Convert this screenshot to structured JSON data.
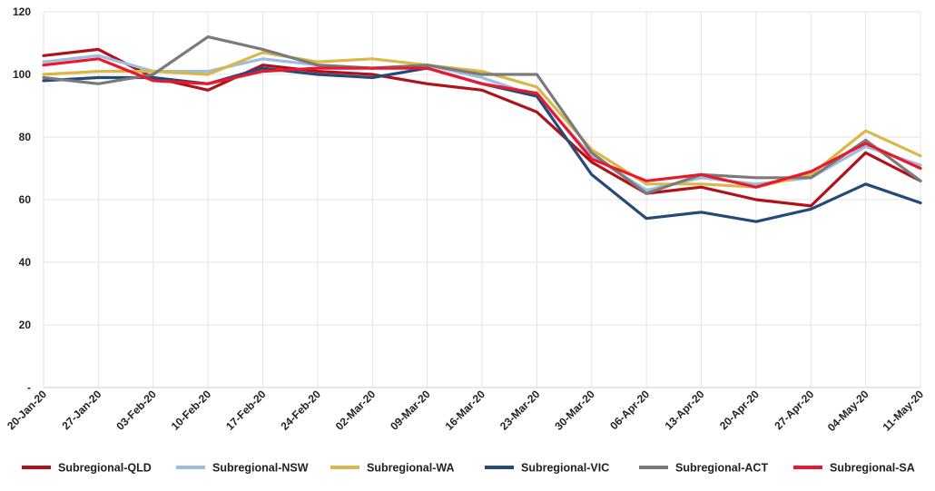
{
  "chart_data": {
    "type": "line",
    "title": "",
    "xlabel": "",
    "ylabel": "",
    "ylim": [
      0,
      120
    ],
    "yticks": [
      {
        "value": 0,
        "label": "-"
      },
      {
        "value": 20,
        "label": "20"
      },
      {
        "value": 40,
        "label": "40"
      },
      {
        "value": 60,
        "label": "60"
      },
      {
        "value": 80,
        "label": "80"
      },
      {
        "value": 100,
        "label": "100"
      },
      {
        "value": 120,
        "label": "120"
      }
    ],
    "grid": true,
    "legend_position": "bottom",
    "categories": [
      "20-Jan-20",
      "27-Jan-20",
      "03-Feb-20",
      "10-Feb-20",
      "17-Feb-20",
      "24-Feb-20",
      "02-Mar-20",
      "09-Mar-20",
      "16-Mar-20",
      "23-Mar-20",
      "30-Mar-20",
      "06-Apr-20",
      "13-Apr-20",
      "20-Apr-20",
      "27-Apr-20",
      "04-May-20",
      "11-May-20"
    ],
    "series": [
      {
        "name": "Subregional-QLD",
        "color": "#b0121b",
        "values": [
          106,
          108,
          99,
          95,
          103,
          101,
          100,
          97,
          95,
          88,
          72,
          62,
          64,
          60,
          58,
          75,
          66
        ]
      },
      {
        "name": "Subregional-NSW",
        "color": "#9cbce0",
        "values": [
          104,
          106,
          101,
          101,
          105,
          103,
          102,
          103,
          99,
          93,
          74,
          63,
          67,
          65,
          67,
          77,
          71
        ]
      },
      {
        "name": "Subregional-WA",
        "color": "#d9b84a",
        "values": [
          100,
          101,
          101,
          100,
          107,
          104,
          105,
          103,
          101,
          96,
          76,
          65,
          65,
          64,
          68,
          82,
          74
        ]
      },
      {
        "name": "Subregional-VIC",
        "color": "#254a78",
        "values": [
          98,
          99,
          99,
          97,
          102,
          100,
          99,
          102,
          97,
          93,
          68,
          54,
          56,
          53,
          57,
          65,
          59
        ]
      },
      {
        "name": "Subregional-ACT",
        "color": "#7a7a7a",
        "values": [
          99,
          97,
          100,
          112,
          108,
          103,
          102,
          103,
          100,
          100,
          75,
          62,
          68,
          67,
          67,
          79,
          66
        ]
      },
      {
        "name": "Subregional-SA",
        "color": "#e8192c",
        "values": [
          103,
          105,
          98,
          97,
          101,
          102,
          102,
          102,
          97,
          94,
          73,
          66,
          68,
          64,
          69,
          78,
          70
        ]
      }
    ]
  }
}
